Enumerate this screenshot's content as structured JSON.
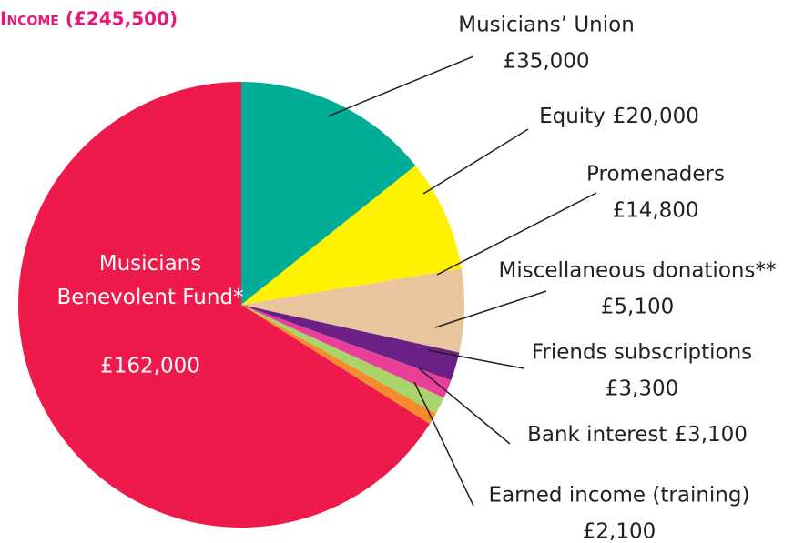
{
  "chart_data": {
    "type": "pie",
    "title": "Income (£245,500)",
    "categories": [
      "Musicians’ Union",
      "Equity",
      "Promenaders",
      "Miscellaneous donations**",
      "Friends subscriptions",
      "Bank interest",
      "Earned income (training)",
      "Musicians Benevolent Fund*"
    ],
    "values": [
      35000,
      20000,
      14800,
      5100,
      3300,
      3100,
      2100,
      162000
    ],
    "value_labels": [
      "£35,000",
      "£20,000",
      "£14,800",
      "£5,100",
      "£3,300",
      "£3,100",
      "£2,100",
      "£162,000"
    ],
    "colors": [
      "#00ae98",
      "#fff200",
      "#e9c59e",
      "#6b2085",
      "#ea3f98",
      "#a9d46c",
      "#f28c2c",
      "#ee1a4c"
    ]
  }
}
